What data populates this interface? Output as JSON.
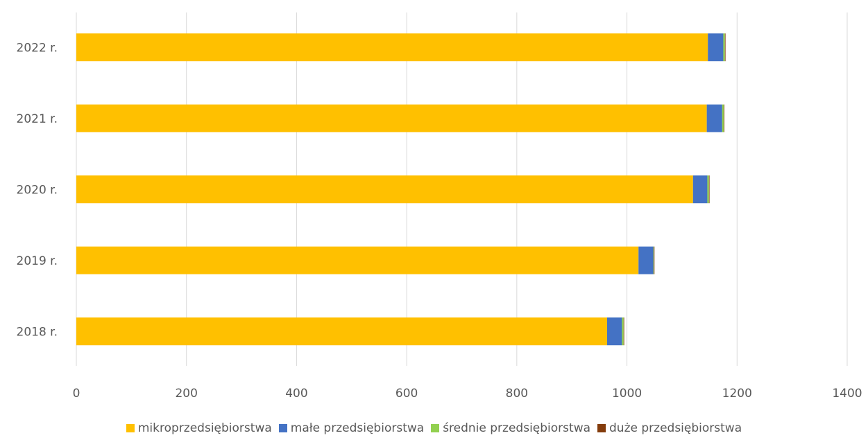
{
  "chart_data": {
    "type": "bar",
    "orientation": "horizontal",
    "stacked": true,
    "title": "",
    "xlabel": "",
    "ylabel": "",
    "categories": [
      "2022 r.",
      "2021 r.",
      "2020 r.",
      "2019 r.",
      "2018 r."
    ],
    "x_ticks": [
      "0",
      "200",
      "400",
      "600",
      "800",
      "1000",
      "1200",
      "1400"
    ],
    "xlim": [
      0,
      1400
    ],
    "grid": "vertical",
    "legend_position": "bottom",
    "series": [
      {
        "name": "mikroprzedsiębiorstwa",
        "color": "#FFC000",
        "values": [
          1147,
          1145,
          1120,
          1021,
          964
        ]
      },
      {
        "name": "małe przedsiębiorstwa",
        "color": "#4472C4",
        "values": [
          28,
          28,
          26,
          27,
          27
        ]
      },
      {
        "name": "średnie przedsiębiorstwa",
        "color": "#92D050",
        "values": [
          3,
          3,
          3,
          1,
          3
        ]
      },
      {
        "name": "duże przedsiębiorstwa",
        "color": "#843C0C",
        "values": [
          1,
          1,
          1,
          1,
          1
        ]
      }
    ]
  }
}
